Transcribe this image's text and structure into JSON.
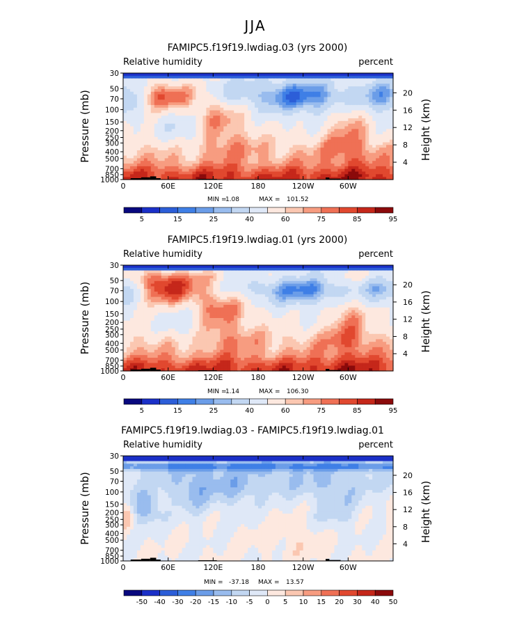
{
  "page": {
    "season": "JJA"
  },
  "colors": {
    "abs": [
      "#08087e",
      "#1b30c8",
      "#2c5ed8",
      "#3f7fe6",
      "#6b9de8",
      "#99bcee",
      "#c2d7f2",
      "#dfe8f7",
      "#fde8df",
      "#fbc7b1",
      "#f79c80",
      "#ef7055",
      "#e1482f",
      "#c5271a",
      "#8b0a0b"
    ],
    "diff": [
      "#08087e",
      "#1b30c8",
      "#2c5ed8",
      "#3f7fe6",
      "#6b9de8",
      "#99bcee",
      "#c2d7f2",
      "#dfe8f7",
      "#fde8df",
      "#fbc7b1",
      "#f79c80",
      "#ef7055",
      "#e1482f",
      "#c5271a",
      "#8b0a0b"
    ]
  },
  "chart_data": [
    {
      "type": "heatmap",
      "title": "FAMIPC5.f19f19.lwdiag.03 (yrs 2000)",
      "left_label": "Relative humidity",
      "right_label": "percent",
      "ylabel": "Pressure  (mb)",
      "ylabel_right": "Height  (km)",
      "xticks": [
        "0",
        "60E",
        "120E",
        "180",
        "120W",
        "60W"
      ],
      "xtick_values": [
        0,
        60,
        120,
        180,
        240,
        300
      ],
      "xlim": [
        0,
        360
      ],
      "pressure_ticks": [
        "30",
        "50",
        "70",
        "100",
        "150",
        "200",
        "250",
        "300",
        "400",
        "500",
        "700",
        "850",
        "1000"
      ],
      "pressure_values": [
        30,
        50,
        70,
        100,
        150,
        200,
        250,
        300,
        400,
        500,
        700,
        850,
        1000
      ],
      "height_ticks": [
        "20",
        "16",
        "12",
        "8",
        "4"
      ],
      "height_values": [
        20,
        16,
        12,
        8,
        4
      ],
      "stats": {
        "min_label": "MIN =",
        "min": "1.08",
        "max_label": "MAX =",
        "max": "101.52"
      },
      "colorbar_labels": [
        "5",
        "15",
        "25",
        "40",
        "60",
        "75",
        "85",
        "95"
      ],
      "colorbar_levels": [
        5,
        10,
        15,
        20,
        25,
        30,
        40,
        50,
        60,
        65,
        70,
        75,
        80,
        85,
        90,
        95
      ],
      "variant": "a"
    },
    {
      "type": "heatmap",
      "title": "FAMIPC5.f19f19.lwdiag.01 (yrs 2000)",
      "left_label": "Relative humidity",
      "right_label": "percent",
      "ylabel": "Pressure  (mb)",
      "ylabel_right": "Height  (km)",
      "xticks": [
        "0",
        "60E",
        "120E",
        "180",
        "120W",
        "60W"
      ],
      "xtick_values": [
        0,
        60,
        120,
        180,
        240,
        300
      ],
      "xlim": [
        0,
        360
      ],
      "pressure_ticks": [
        "30",
        "50",
        "70",
        "100",
        "150",
        "200",
        "250",
        "300",
        "400",
        "500",
        "700",
        "850",
        "1000"
      ],
      "pressure_values": [
        30,
        50,
        70,
        100,
        150,
        200,
        250,
        300,
        400,
        500,
        700,
        850,
        1000
      ],
      "height_ticks": [
        "20",
        "16",
        "12",
        "8",
        "4"
      ],
      "height_values": [
        20,
        16,
        12,
        8,
        4
      ],
      "stats": {
        "min_label": "MIN =",
        "min": "1.14",
        "max_label": "MAX =",
        "max": "106.30"
      },
      "colorbar_labels": [
        "5",
        "15",
        "25",
        "40",
        "60",
        "75",
        "85",
        "95"
      ],
      "colorbar_levels": [
        5,
        10,
        15,
        20,
        25,
        30,
        40,
        50,
        60,
        65,
        70,
        75,
        80,
        85,
        90,
        95
      ],
      "variant": "b"
    },
    {
      "type": "heatmap",
      "title": "FAMIPC5.f19f19.lwdiag.03 - FAMIPC5.f19f19.lwdiag.01",
      "left_label": "Relative humidity",
      "right_label": "percent",
      "ylabel": "Pressure  (mb)",
      "ylabel_right": "Height  (km)",
      "xticks": [
        "0",
        "60E",
        "120E",
        "180",
        "120W",
        "60W"
      ],
      "xtick_values": [
        0,
        60,
        120,
        180,
        240,
        300
      ],
      "xlim": [
        0,
        360
      ],
      "pressure_ticks": [
        "30",
        "50",
        "70",
        "100",
        "150",
        "200",
        "250",
        "300",
        "400",
        "500",
        "700",
        "850",
        "1000"
      ],
      "pressure_values": [
        30,
        50,
        70,
        100,
        150,
        200,
        250,
        300,
        400,
        500,
        700,
        850,
        1000
      ],
      "height_ticks": [
        "20",
        "16",
        "12",
        "8",
        "4"
      ],
      "height_values": [
        20,
        16,
        12,
        8,
        4
      ],
      "stats": {
        "min_label": "MIN =",
        "min": "-37.18",
        "max_label": "MAX =",
        "max": "13.57"
      },
      "colorbar_labels": [
        "-50",
        "-40",
        "-30",
        "-20",
        "-15",
        "-10",
        "-5",
        "0",
        "5",
        "10",
        "15",
        "20",
        "30",
        "40",
        "50"
      ],
      "colorbar_levels": [
        -50,
        -40,
        -30,
        -20,
        -15,
        -10,
        -5,
        0,
        5,
        10,
        15,
        20,
        30,
        40,
        50
      ],
      "variant": "diff"
    }
  ]
}
